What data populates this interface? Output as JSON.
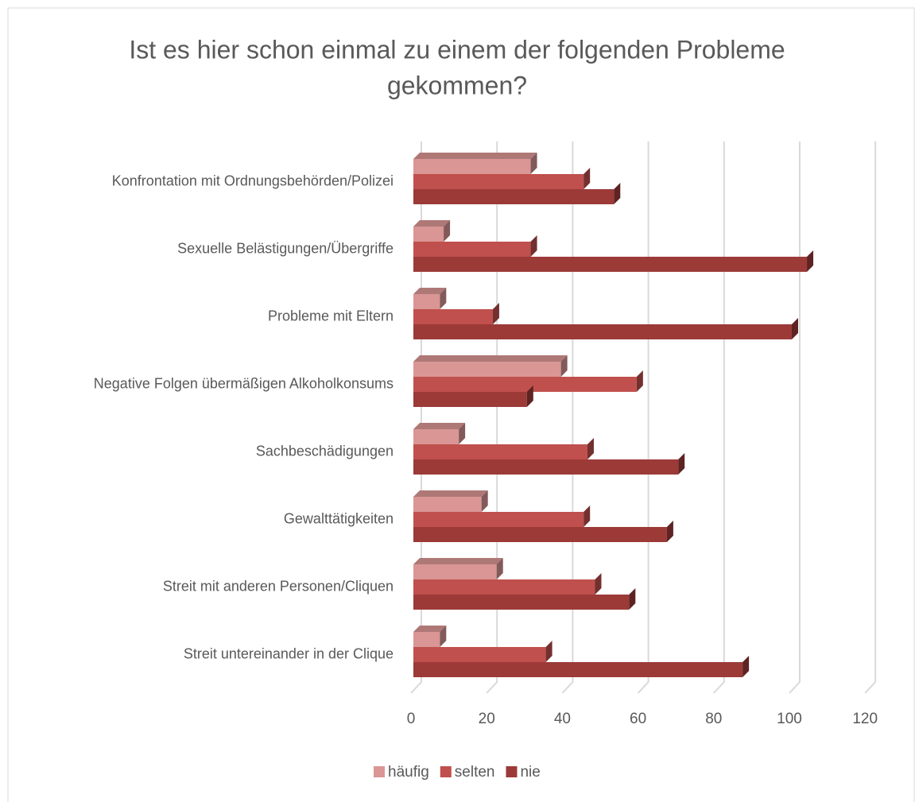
{
  "chart_data": {
    "type": "bar",
    "orientation": "horizontal",
    "title": [
      "Ist es hier schon einmal zu einem der folgenden Probleme",
      "gekommen?"
    ],
    "categories": [
      "Konfrontation mit Ordnungsbehörden/Polizei",
      "Sexuelle Belästigungen/Übergriffe",
      "Probleme mit Eltern",
      "Negative Folgen übermäßigen Alkoholkonsums",
      "Sachbeschädigungen",
      "Gewalttätigkeiten",
      "Streit mit anderen Personen/Cliquen",
      "Streit untereinander in der Clique"
    ],
    "series": [
      {
        "name": "häufig",
        "color": "#d99694",
        "values": [
          31,
          8,
          7,
          39,
          12,
          18,
          22,
          7
        ]
      },
      {
        "name": "selten",
        "color": "#c0504d",
        "values": [
          45,
          31,
          21,
          59,
          46,
          45,
          48,
          35
        ]
      },
      {
        "name": "nie",
        "color": "#9c3a38",
        "values": [
          53,
          104,
          100,
          30,
          70,
          67,
          57,
          87
        ]
      }
    ],
    "xlim": [
      0,
      120
    ],
    "xticks": [
      0,
      20,
      40,
      60,
      80,
      100,
      120
    ],
    "grid": true,
    "legend": "bottom"
  }
}
